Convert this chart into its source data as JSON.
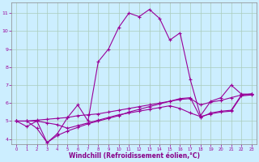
{
  "line1_x": [
    0,
    1,
    2,
    3,
    4,
    5,
    6,
    7,
    8,
    9,
    10,
    11,
    12,
    13,
    14,
    15,
    16,
    17,
    18,
    19,
    20,
    21,
    22,
    23
  ],
  "line1_y": [
    5.0,
    4.7,
    5.0,
    3.8,
    4.3,
    5.2,
    5.9,
    5.0,
    8.3,
    9.0,
    10.2,
    11.0,
    10.8,
    11.2,
    10.7,
    9.5,
    9.9,
    7.3,
    5.3,
    6.1,
    6.3,
    7.0,
    6.5,
    6.5
  ],
  "line2_x": [
    0,
    1,
    2,
    3,
    4,
    5,
    6,
    7,
    8,
    9,
    10,
    11,
    12,
    13,
    14,
    15,
    16,
    17,
    18,
    19,
    20,
    21,
    22,
    23
  ],
  "line2_y": [
    5.0,
    5.0,
    5.05,
    5.1,
    5.15,
    5.2,
    5.3,
    5.35,
    5.4,
    5.5,
    5.6,
    5.7,
    5.8,
    5.9,
    6.0,
    6.1,
    6.2,
    6.25,
    5.9,
    6.05,
    6.15,
    6.3,
    6.45,
    6.5
  ],
  "line3_x": [
    0,
    1,
    2,
    3,
    4,
    5,
    6,
    7,
    8,
    9,
    10,
    11,
    12,
    13,
    14,
    15,
    16,
    17,
    18,
    19,
    20,
    21,
    22,
    23
  ],
  "line3_y": [
    5.0,
    5.0,
    5.0,
    4.9,
    4.8,
    4.6,
    4.75,
    4.9,
    5.05,
    5.2,
    5.35,
    5.45,
    5.55,
    5.65,
    5.75,
    5.85,
    5.7,
    5.45,
    5.25,
    5.4,
    5.5,
    5.55,
    6.4,
    6.45
  ],
  "line4_x": [
    0,
    1,
    2,
    3,
    4,
    5,
    6,
    7,
    8,
    9,
    10,
    11,
    12,
    13,
    14,
    15,
    16,
    17,
    18,
    19,
    20,
    21,
    22,
    23
  ],
  "line4_y": [
    5.0,
    5.0,
    4.6,
    3.8,
    4.2,
    4.45,
    4.65,
    4.85,
    5.0,
    5.15,
    5.3,
    5.5,
    5.65,
    5.8,
    5.95,
    6.1,
    6.25,
    6.3,
    5.2,
    5.45,
    5.55,
    5.6,
    6.45,
    6.5
  ],
  "color": "#990099",
  "bg_color": "#cceeff",
  "grid_color": "#aaccbb",
  "xlabel": "Windchill (Refroidissement éolien,°C)",
  "xlabel_color": "#880088",
  "ylim": [
    3.7,
    11.6
  ],
  "xlim": [
    -0.5,
    23.5
  ],
  "yticks": [
    4,
    5,
    6,
    7,
    8,
    9,
    10,
    11
  ],
  "xticks": [
    0,
    1,
    2,
    3,
    4,
    5,
    6,
    7,
    8,
    9,
    10,
    11,
    12,
    13,
    14,
    15,
    16,
    17,
    18,
    19,
    20,
    21,
    22,
    23
  ]
}
